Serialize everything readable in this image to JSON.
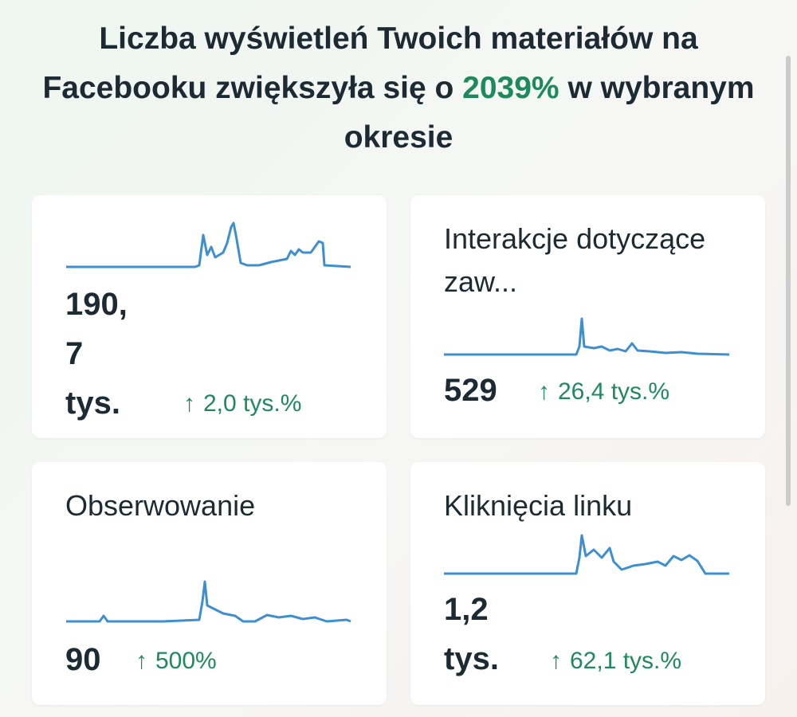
{
  "header": {
    "title_before": "Liczba wyświetleń Twoich materiałów na Facebooku zwiększyła się o",
    "title_highlight": "2039%",
    "title_after": "w wybranym okresie"
  },
  "cards": [
    {
      "value": "190,\n7\ntys.",
      "change": "2,0 tys.%"
    },
    {
      "title": "Interakcje dotyczące zaw...",
      "value": "529",
      "change": "26,4 tys.%"
    },
    {
      "title": "Obserwowanie",
      "value": "90",
      "change": "500%"
    },
    {
      "title": "Kliknięcia linku",
      "value": "1,2\ntys.",
      "change": "62,1 tys.%"
    }
  ]
}
